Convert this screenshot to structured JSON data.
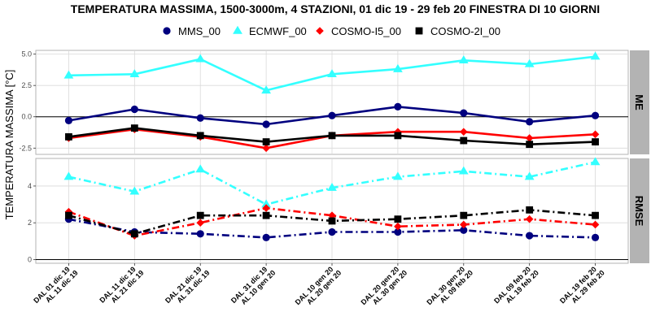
{
  "chart_data": {
    "type": "line",
    "title": "TEMPERATURA MASSIMA, 1500-3000m, 4 STAZIONI, 01 dic 19 - 29 feb 20 FINESTRA DI 10 GIORNI",
    "ylabel": "TEMPERATURA MASSIMA [°C]",
    "categories": [
      [
        "DAL 01 dic 19",
        "AL 11 dic 19"
      ],
      [
        "DAL 11 dic 19",
        "AL 21 dic 19"
      ],
      [
        "DAL 21 dic 19",
        "AL 31 dic 19"
      ],
      [
        "DAL 31 dic 19",
        "AL 10 gen 20"
      ],
      [
        "DAL 10 gen 20",
        "AL 20 gen 20"
      ],
      [
        "DAL 20 gen 20",
        "AL 30 gen 20"
      ],
      [
        "DAL 30 gen 20",
        "AL 09 feb 20"
      ],
      [
        "DAL 09 feb 20",
        "AL 19 feb 20"
      ],
      [
        "DAL 19 feb 20",
        "AL 29 feb 20"
      ]
    ],
    "legend": {
      "placement": "top",
      "entries": [
        "MMS_00",
        "ECMWF_00",
        "COSMO-I5_00",
        "COSMO-2I_00"
      ]
    },
    "series_styles": [
      {
        "name": "MMS_00",
        "color": "#00007f",
        "marker": "circle"
      },
      {
        "name": "ECMWF_00",
        "color": "#33ffff",
        "marker": "triangle"
      },
      {
        "name": "COSMO-I5_00",
        "color": "#ff0000",
        "marker": "diamond"
      },
      {
        "name": "COSMO-2I_00",
        "color": "#000000",
        "marker": "square"
      }
    ],
    "panels": [
      {
        "strip": "ME",
        "linestyle": "solid",
        "ylim": [
          -3.0,
          5.3
        ],
        "yticks": [
          -2.5,
          0.0,
          2.5,
          5.0
        ],
        "ytick_labels": [
          "-2.5",
          "0.0",
          "2.5",
          "5.0"
        ],
        "reference_line": 0,
        "series": [
          {
            "name": "MMS_00",
            "values": [
              -0.3,
              0.6,
              -0.1,
              -0.6,
              0.1,
              0.8,
              0.3,
              -0.4,
              0.1
            ]
          },
          {
            "name": "ECMWF_00",
            "values": [
              3.3,
              3.4,
              4.6,
              2.1,
              3.4,
              3.8,
              4.5,
              4.2,
              4.8
            ]
          },
          {
            "name": "COSMO-I5_00",
            "values": [
              -1.7,
              -1.0,
              -1.6,
              -2.5,
              -1.5,
              -1.2,
              -1.2,
              -1.7,
              -1.4
            ]
          },
          {
            "name": "COSMO-2I_00",
            "values": [
              -1.6,
              -0.9,
              -1.5,
              -2.0,
              -1.5,
              -1.5,
              -1.9,
              -2.2,
              -2.0
            ]
          }
        ]
      },
      {
        "strip": "RMSE",
        "linestyle": "dashdot",
        "ylim": [
          -0.2,
          5.5
        ],
        "yticks": [
          0,
          2,
          4
        ],
        "ytick_labels": [
          "0",
          "2",
          "4"
        ],
        "reference_line": 0,
        "series": [
          {
            "name": "MMS_00",
            "values": [
              2.2,
              1.5,
              1.4,
              1.2,
              1.5,
              1.5,
              1.6,
              1.3,
              1.2
            ]
          },
          {
            "name": "ECMWF_00",
            "values": [
              4.5,
              3.7,
              4.9,
              3.0,
              3.9,
              4.5,
              4.8,
              4.5,
              5.3
            ]
          },
          {
            "name": "COSMO-I5_00",
            "values": [
              2.6,
              1.3,
              2.0,
              2.8,
              2.4,
              1.8,
              1.9,
              2.2,
              1.9
            ]
          },
          {
            "name": "COSMO-2I_00",
            "values": [
              2.4,
              1.4,
              2.4,
              2.4,
              2.1,
              2.2,
              2.4,
              2.7,
              2.4
            ]
          }
        ]
      }
    ]
  }
}
